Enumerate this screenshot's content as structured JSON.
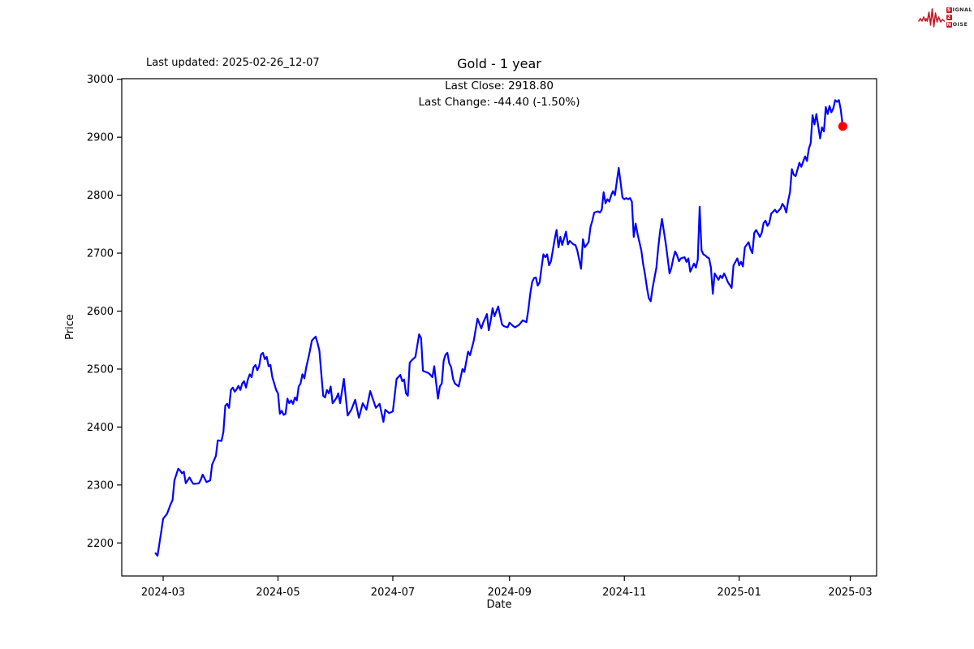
{
  "header": {
    "last_updated": "Last updated: 2025-02-26_12-07"
  },
  "logo": {
    "badge1": "S",
    "rest1": "IGNAL",
    "badge2": "2",
    "badge3": "N",
    "rest3": "OISE",
    "color": "#c21e25"
  },
  "chart_data": {
    "type": "line",
    "title": "Gold - 1 year",
    "xlabel": "Date",
    "ylabel": "Price",
    "annotation_line1": "Last Close: 2918.80",
    "annotation_line2": "Last Change: -44.40 (-1.50%)",
    "last_close": 2918.8,
    "last_change": "-44.40 (-1.50%)",
    "legend": "none",
    "grid": false,
    "x_tick_labels": [
      "2024-03",
      "2024-05",
      "2024-07",
      "2024-09",
      "2024-11",
      "2025-01",
      "2025-03"
    ],
    "x_tick_days": [
      4,
      65,
      126,
      188,
      249,
      310,
      369
    ],
    "y_ticks": [
      2200,
      2300,
      2400,
      2500,
      2600,
      2700,
      2800,
      2900,
      3000
    ],
    "xlim_days": [
      -18,
      383
    ],
    "ylim": [
      2143,
      3001
    ],
    "line_color": "#0000ff",
    "marker_color": "#ff0000",
    "axis_color": "#000000",
    "series": [
      {
        "name": "Gold",
        "start_date": "2024-02-26",
        "end_date": "2025-02-26",
        "points": [
          [
            0,
            2182
          ],
          [
            1,
            2178
          ],
          [
            3,
            2220
          ],
          [
            4,
            2242
          ],
          [
            6,
            2250
          ],
          [
            8,
            2267
          ],
          [
            9,
            2274
          ],
          [
            10,
            2308
          ],
          [
            12,
            2328
          ],
          [
            13,
            2325
          ],
          [
            14,
            2320
          ],
          [
            15,
            2323
          ],
          [
            16,
            2303
          ],
          [
            18,
            2313
          ],
          [
            19,
            2307
          ],
          [
            20,
            2302
          ],
          [
            21,
            2302
          ],
          [
            23,
            2303
          ],
          [
            24,
            2309
          ],
          [
            25,
            2318
          ],
          [
            27,
            2305
          ],
          [
            29,
            2308
          ],
          [
            30,
            2335
          ],
          [
            32,
            2350
          ],
          [
            33,
            2377
          ],
          [
            35,
            2376
          ],
          [
            36,
            2391
          ],
          [
            37,
            2437
          ],
          [
            38,
            2440
          ],
          [
            39,
            2433
          ],
          [
            40,
            2464
          ],
          [
            41,
            2468
          ],
          [
            42,
            2461
          ],
          [
            43,
            2465
          ],
          [
            44,
            2471
          ],
          [
            45,
            2464
          ],
          [
            46,
            2475
          ],
          [
            47,
            2479
          ],
          [
            48,
            2468
          ],
          [
            49,
            2482
          ],
          [
            50,
            2491
          ],
          [
            51,
            2486
          ],
          [
            52,
            2503
          ],
          [
            53,
            2507
          ],
          [
            54,
            2498
          ],
          [
            55,
            2505
          ],
          [
            56,
            2525
          ],
          [
            57,
            2528
          ],
          [
            58,
            2517
          ],
          [
            59,
            2521
          ],
          [
            60,
            2505
          ],
          [
            61,
            2507
          ],
          [
            62,
            2486
          ],
          [
            63,
            2475
          ],
          [
            64,
            2464
          ],
          [
            65,
            2458
          ],
          [
            66,
            2423
          ],
          [
            67,
            2428
          ],
          [
            68,
            2421
          ],
          [
            69,
            2423
          ],
          [
            70,
            2449
          ],
          [
            71,
            2441
          ],
          [
            72,
            2446
          ],
          [
            73,
            2440
          ],
          [
            74,
            2451
          ],
          [
            75,
            2446
          ],
          [
            76,
            2470
          ],
          [
            77,
            2475
          ],
          [
            78,
            2491
          ],
          [
            79,
            2484
          ],
          [
            80,
            2503
          ],
          [
            81,
            2517
          ],
          [
            82,
            2532
          ],
          [
            83,
            2549
          ],
          [
            85,
            2556
          ],
          [
            86,
            2545
          ],
          [
            87,
            2532
          ],
          [
            88,
            2493
          ],
          [
            89,
            2454
          ],
          [
            90,
            2451
          ],
          [
            91,
            2464
          ],
          [
            92,
            2458
          ],
          [
            93,
            2470
          ],
          [
            94,
            2441
          ],
          [
            96,
            2450
          ],
          [
            97,
            2458
          ],
          [
            98,
            2441
          ],
          [
            100,
            2483
          ],
          [
            102,
            2420
          ],
          [
            104,
            2430
          ],
          [
            106,
            2447
          ],
          [
            108,
            2416
          ],
          [
            110,
            2441
          ],
          [
            112,
            2430
          ],
          [
            114,
            2462
          ],
          [
            117,
            2433
          ],
          [
            119,
            2440
          ],
          [
            121,
            2409
          ],
          [
            122,
            2430
          ],
          [
            124,
            2424
          ],
          [
            126,
            2427
          ],
          [
            128,
            2483
          ],
          [
            130,
            2490
          ],
          [
            131,
            2479
          ],
          [
            132,
            2482
          ],
          [
            133,
            2458
          ],
          [
            134,
            2454
          ],
          [
            135,
            2511
          ],
          [
            136,
            2515
          ],
          [
            138,
            2521
          ],
          [
            140,
            2560
          ],
          [
            141,
            2553
          ],
          [
            142,
            2497
          ],
          [
            145,
            2493
          ],
          [
            146,
            2490
          ],
          [
            147,
            2486
          ],
          [
            148,
            2505
          ],
          [
            150,
            2449
          ],
          [
            151,
            2470
          ],
          [
            152,
            2475
          ],
          [
            153,
            2514
          ],
          [
            154,
            2525
          ],
          [
            155,
            2528
          ],
          [
            156,
            2510
          ],
          [
            157,
            2503
          ],
          [
            158,
            2483
          ],
          [
            159,
            2475
          ],
          [
            161,
            2470
          ],
          [
            163,
            2500
          ],
          [
            164,
            2495
          ],
          [
            166,
            2530
          ],
          [
            167,
            2524
          ],
          [
            169,
            2549
          ],
          [
            171,
            2587
          ],
          [
            173,
            2570
          ],
          [
            174,
            2580
          ],
          [
            176,
            2595
          ],
          [
            177,
            2567
          ],
          [
            178,
            2584
          ],
          [
            179,
            2605
          ],
          [
            180,
            2591
          ],
          [
            182,
            2608
          ],
          [
            184,
            2577
          ],
          [
            185,
            2574
          ],
          [
            187,
            2572
          ],
          [
            188,
            2580
          ],
          [
            190,
            2574
          ],
          [
            191,
            2572
          ],
          [
            193,
            2576
          ],
          [
            195,
            2584
          ],
          [
            197,
            2581
          ],
          [
            198,
            2602
          ],
          [
            199,
            2630
          ],
          [
            200,
            2650
          ],
          [
            201,
            2657
          ],
          [
            202,
            2658
          ],
          [
            203,
            2644
          ],
          [
            204,
            2650
          ],
          [
            205,
            2675
          ],
          [
            206,
            2698
          ],
          [
            207,
            2693
          ],
          [
            208,
            2698
          ],
          [
            209,
            2679
          ],
          [
            210,
            2686
          ],
          [
            212,
            2724
          ],
          [
            213,
            2740
          ],
          [
            214,
            2710
          ],
          [
            215,
            2728
          ],
          [
            216,
            2714
          ],
          [
            218,
            2737
          ],
          [
            219,
            2715
          ],
          [
            220,
            2721
          ],
          [
            222,
            2715
          ],
          [
            223,
            2714
          ],
          [
            224,
            2705
          ],
          [
            226,
            2673
          ],
          [
            227,
            2724
          ],
          [
            228,
            2710
          ],
          [
            230,
            2719
          ],
          [
            231,
            2745
          ],
          [
            232,
            2756
          ],
          [
            233,
            2770
          ],
          [
            235,
            2772
          ],
          [
            236,
            2770
          ],
          [
            237,
            2775
          ],
          [
            238,
            2805
          ],
          [
            239,
            2786
          ],
          [
            240,
            2793
          ],
          [
            241,
            2789
          ],
          [
            242,
            2800
          ],
          [
            243,
            2807
          ],
          [
            244,
            2800
          ],
          [
            246,
            2847
          ],
          [
            247,
            2822
          ],
          [
            248,
            2796
          ],
          [
            249,
            2793
          ],
          [
            250,
            2795
          ],
          [
            251,
            2793
          ],
          [
            252,
            2795
          ],
          [
            253,
            2789
          ],
          [
            254,
            2728
          ],
          [
            255,
            2751
          ],
          [
            256,
            2733
          ],
          [
            258,
            2705
          ],
          [
            259,
            2681
          ],
          [
            260,
            2663
          ],
          [
            261,
            2640
          ],
          [
            262,
            2622
          ],
          [
            263,
            2617
          ],
          [
            264,
            2640
          ],
          [
            266,
            2675
          ],
          [
            267,
            2710
          ],
          [
            268,
            2738
          ],
          [
            269,
            2759
          ],
          [
            271,
            2717
          ],
          [
            272,
            2691
          ],
          [
            273,
            2665
          ],
          [
            274,
            2675
          ],
          [
            275,
            2691
          ],
          [
            276,
            2703
          ],
          [
            277,
            2696
          ],
          [
            278,
            2686
          ],
          [
            279,
            2691
          ],
          [
            281,
            2693
          ],
          [
            282,
            2685
          ],
          [
            283,
            2691
          ],
          [
            284,
            2668
          ],
          [
            285,
            2675
          ],
          [
            286,
            2682
          ],
          [
            287,
            2675
          ],
          [
            288,
            2689
          ],
          [
            289,
            2780
          ],
          [
            290,
            2705
          ],
          [
            291,
            2698
          ],
          [
            292,
            2696
          ],
          [
            293,
            2693
          ],
          [
            294,
            2691
          ],
          [
            295,
            2675
          ],
          [
            296,
            2630
          ],
          [
            297,
            2665
          ],
          [
            299,
            2654
          ],
          [
            300,
            2661
          ],
          [
            301,
            2657
          ],
          [
            302,
            2665
          ],
          [
            303,
            2658
          ],
          [
            304,
            2650
          ],
          [
            306,
            2640
          ],
          [
            307,
            2679
          ],
          [
            309,
            2691
          ],
          [
            310,
            2679
          ],
          [
            311,
            2685
          ],
          [
            312,
            2677
          ],
          [
            313,
            2710
          ],
          [
            315,
            2719
          ],
          [
            316,
            2707
          ],
          [
            317,
            2700
          ],
          [
            318,
            2735
          ],
          [
            319,
            2740
          ],
          [
            321,
            2728
          ],
          [
            322,
            2735
          ],
          [
            323,
            2752
          ],
          [
            324,
            2756
          ],
          [
            325,
            2747
          ],
          [
            326,
            2752
          ],
          [
            327,
            2768
          ],
          [
            329,
            2775
          ],
          [
            330,
            2770
          ],
          [
            332,
            2777
          ],
          [
            333,
            2785
          ],
          [
            334,
            2780
          ],
          [
            335,
            2770
          ],
          [
            336,
            2790
          ],
          [
            337,
            2805
          ],
          [
            338,
            2845
          ],
          [
            339,
            2835
          ],
          [
            340,
            2833
          ],
          [
            342,
            2856
          ],
          [
            343,
            2849
          ],
          [
            345,
            2867
          ],
          [
            346,
            2859
          ],
          [
            347,
            2880
          ],
          [
            348,
            2890
          ],
          [
            349,
            2938
          ],
          [
            350,
            2922
          ],
          [
            351,
            2940
          ],
          [
            353,
            2898
          ],
          [
            354,
            2917
          ],
          [
            355,
            2910
          ],
          [
            356,
            2952
          ],
          [
            357,
            2940
          ],
          [
            358,
            2954
          ],
          [
            359,
            2943
          ],
          [
            360,
            2950
          ],
          [
            361,
            2964
          ],
          [
            362,
            2961
          ],
          [
            363,
            2964
          ],
          [
            364,
            2947
          ],
          [
            365,
            2918.8
          ]
        ]
      }
    ],
    "end_marker": {
      "day": 365,
      "price": 2918.8
    }
  }
}
